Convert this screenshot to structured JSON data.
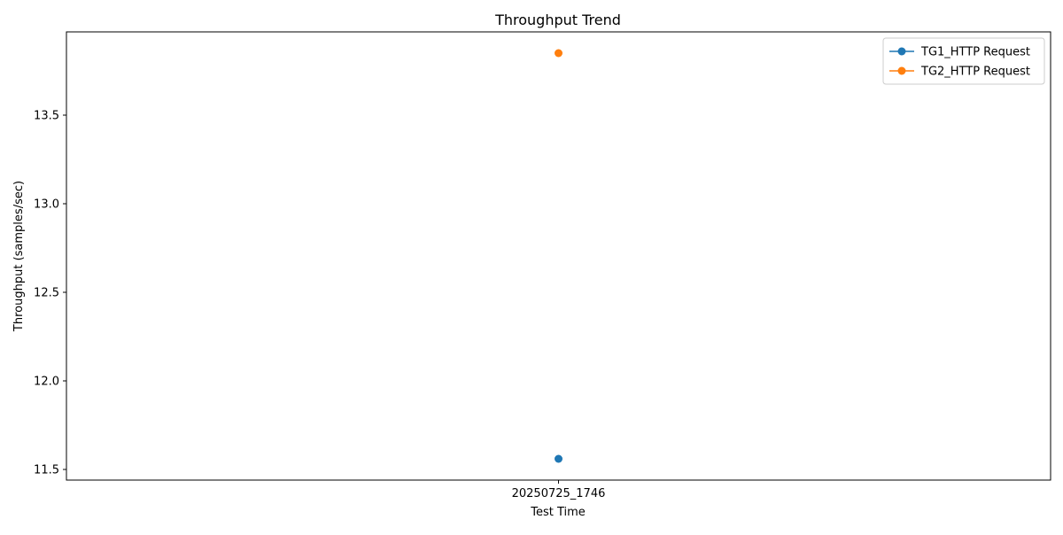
{
  "chart_data": {
    "type": "line",
    "title": "Throughput Trend",
    "xlabel": "Test Time",
    "ylabel": "Throughput (samples/sec)",
    "categories": [
      "20250725_1746"
    ],
    "ylim": [
      11.44,
      13.97
    ],
    "yticks": [
      11.5,
      12.0,
      12.5,
      13.0,
      13.5
    ],
    "ytick_labels": [
      "11.5",
      "12.0",
      "12.5",
      "13.0",
      "13.5"
    ],
    "grid": false,
    "legend_position": "top-right",
    "series": [
      {
        "name": "TG1_HTTP Request",
        "color": "#1f77b4",
        "values": [
          11.56
        ]
      },
      {
        "name": "TG2_HTTP Request",
        "color": "#ff7f0e",
        "values": [
          13.85
        ]
      }
    ]
  }
}
